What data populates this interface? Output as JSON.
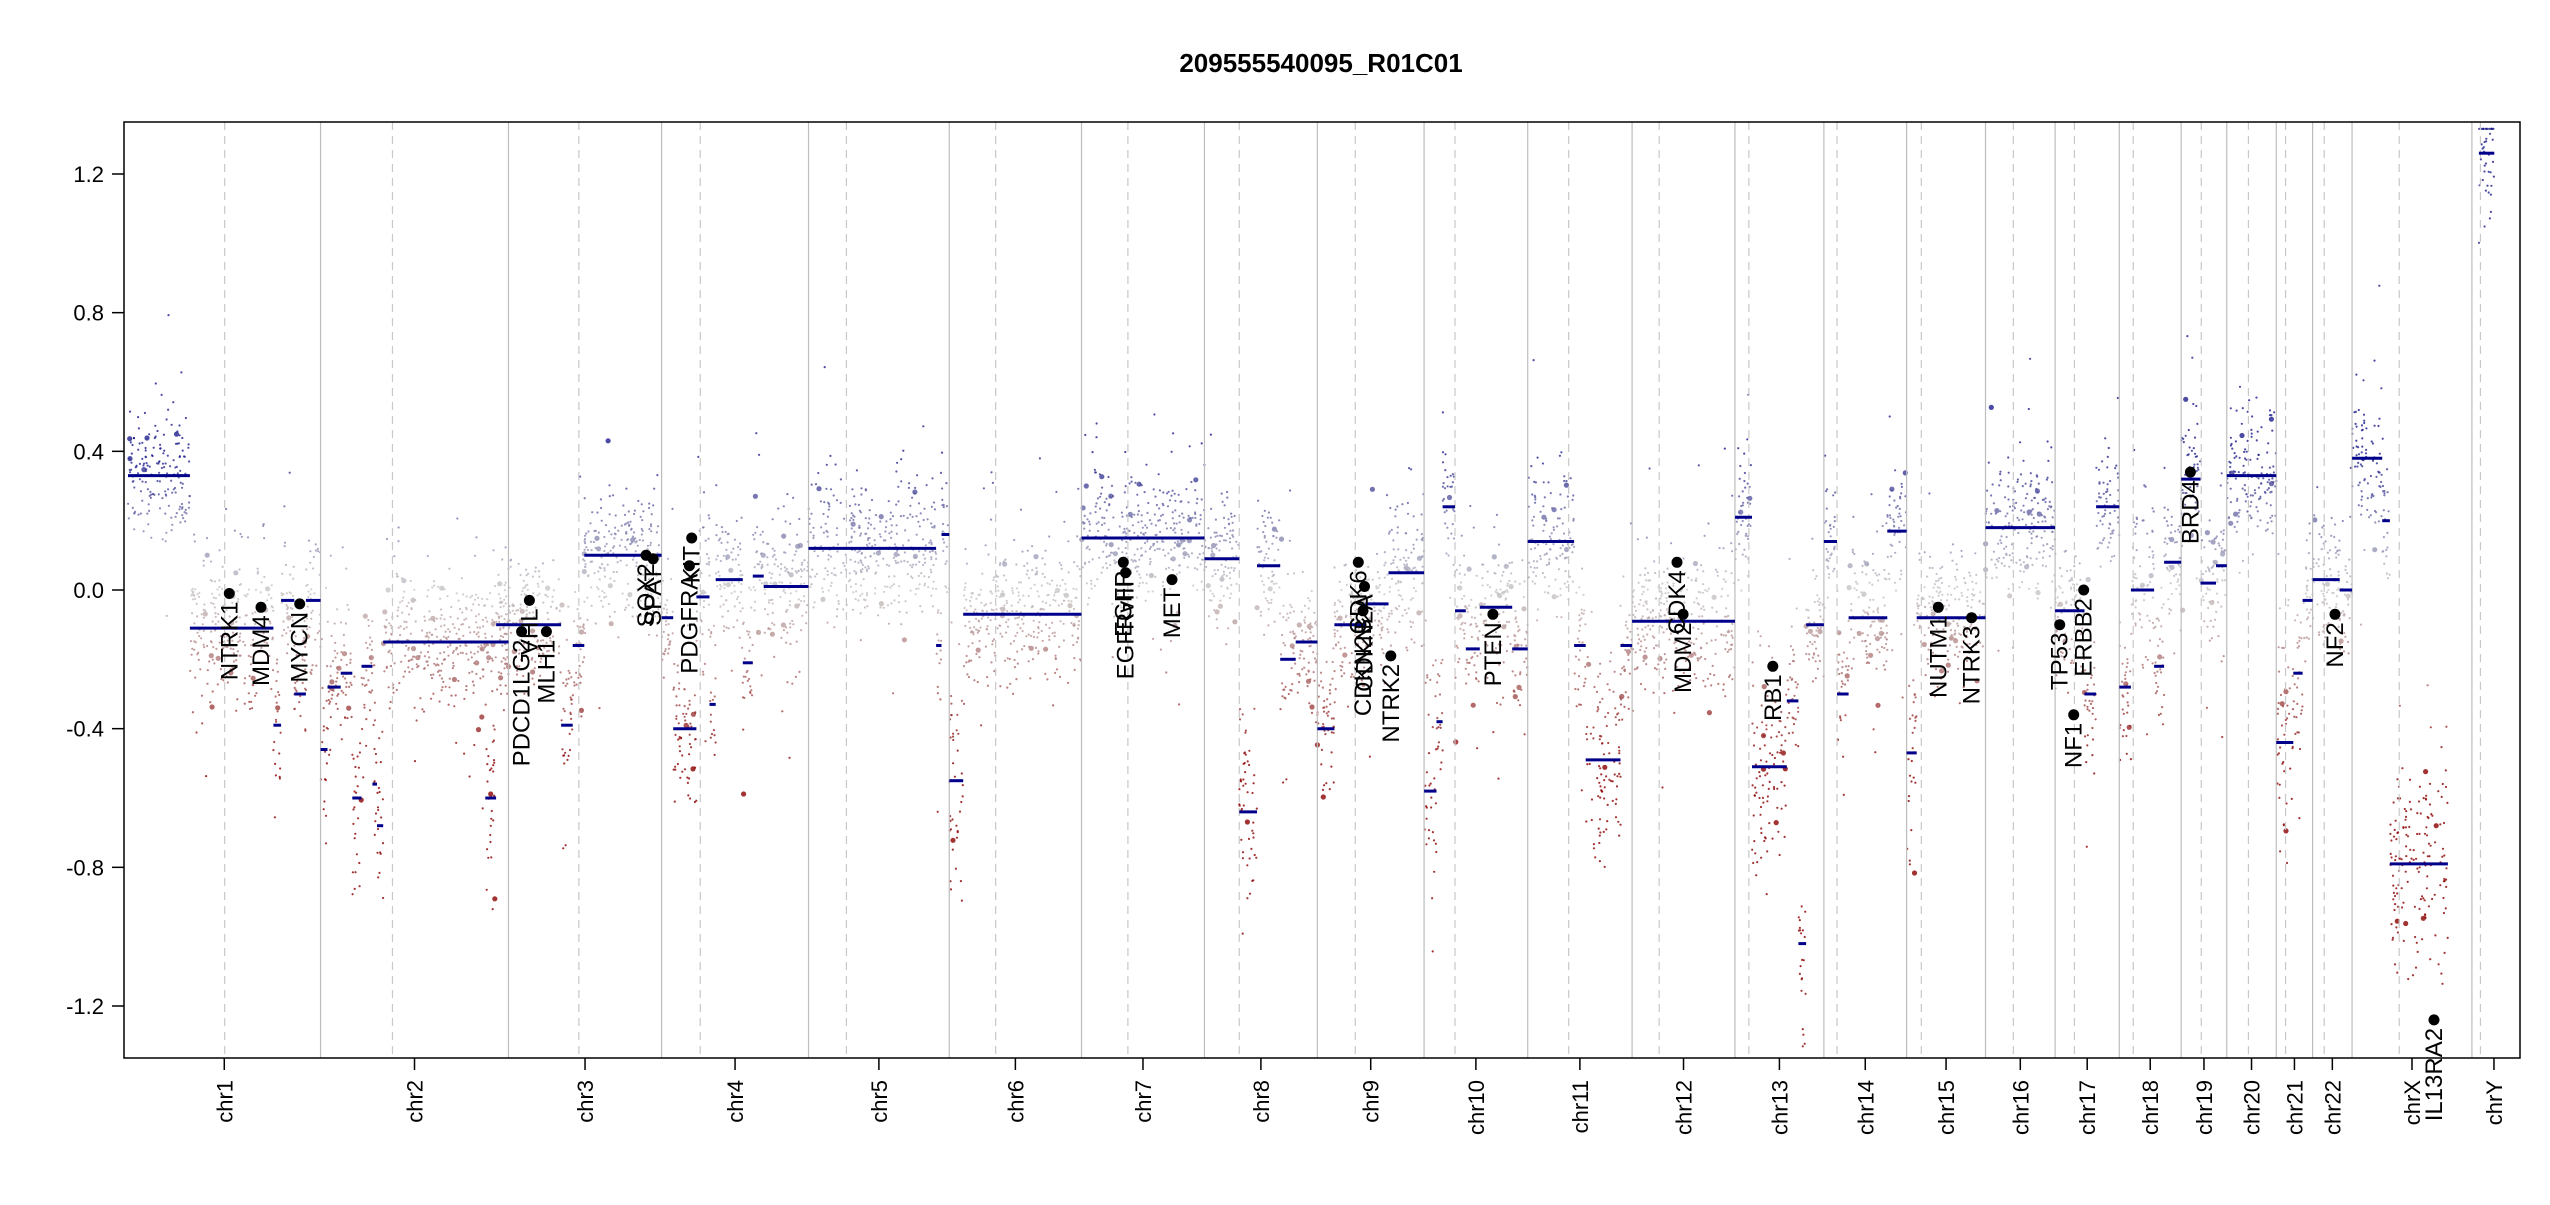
{
  "chart_data": {
    "type": "scatter",
    "title": "209555540095_R01C01",
    "xlabel": "",
    "ylabel": "",
    "ylim": [
      -1.35,
      1.35
    ],
    "yticks": [
      {
        "value": 1.2,
        "label": "1.2"
      },
      {
        "value": 0.8,
        "label": "0.8"
      },
      {
        "value": 0.4,
        "label": "0.4"
      },
      {
        "value": 0.0,
        "label": "0.0"
      },
      {
        "value": -0.4,
        "label": "-0.4"
      },
      {
        "value": -0.8,
        "label": "-0.8"
      },
      {
        "value": -1.2,
        "label": "-1.2"
      }
    ],
    "grid": false,
    "colors": {
      "gain": "#1a1a8c",
      "neutral": "#c8c8c8",
      "loss": "#8b0000",
      "segment": "#00008b",
      "gene_marker": "#000000",
      "chrom_boundary": "#bdbdbd",
      "centromere": "#c8c8c8"
    },
    "chromosomes": [
      {
        "name": "chr1",
        "start": 0.0,
        "end": 249.0,
        "centromere": 125.0
      },
      {
        "name": "chr2",
        "start": 249.0,
        "end": 492.0,
        "centromere": 342.0
      },
      {
        "name": "chr3",
        "start": 492.0,
        "end": 690.0,
        "centromere": 583.0
      },
      {
        "name": "chr4",
        "start": 690.0,
        "end": 880.0,
        "centromere": 740.0
      },
      {
        "name": "chr5",
        "start": 880.0,
        "end": 1062.0,
        "centromere": 929.0
      },
      {
        "name": "chr6",
        "start": 1062.0,
        "end": 1233.0,
        "centromere": 1122.0
      },
      {
        "name": "chr7",
        "start": 1233.0,
        "end": 1392.0,
        "centromere": 1293.0
      },
      {
        "name": "chr8",
        "start": 1392.0,
        "end": 1538.0,
        "centromere": 1437.0
      },
      {
        "name": "chr9",
        "start": 1538.0,
        "end": 1676.0,
        "centromere": 1587.0
      },
      {
        "name": "chr10",
        "start": 1676.0,
        "end": 1810.0,
        "centromere": 1716.0
      },
      {
        "name": "chr11",
        "start": 1810.0,
        "end": 1945.0,
        "centromere": 1863.0
      },
      {
        "name": "chr12",
        "start": 1945.0,
        "end": 2078.0,
        "centromere": 1980.0
      },
      {
        "name": "chr13",
        "start": 2078.0,
        "end": 2193.0,
        "centromere": 2096.0
      },
      {
        "name": "chr14",
        "start": 2193.0,
        "end": 2300.0,
        "centromere": 2210.0
      },
      {
        "name": "chr15",
        "start": 2300.0,
        "end": 2402.0,
        "centromere": 2319.0
      },
      {
        "name": "chr16",
        "start": 2402.0,
        "end": 2492.0,
        "centromere": 2438.0
      },
      {
        "name": "chr17",
        "start": 2492.0,
        "end": 2575.0,
        "centromere": 2517.0
      },
      {
        "name": "chr18",
        "start": 2575.0,
        "end": 2655.0,
        "centromere": 2593.0
      },
      {
        "name": "chr19",
        "start": 2655.0,
        "end": 2714.0,
        "centromere": 2681.0
      },
      {
        "name": "chr20",
        "start": 2714.0,
        "end": 2778.0,
        "centromere": 2742.0
      },
      {
        "name": "chr21",
        "start": 2778.0,
        "end": 2825.0,
        "centromere": 2790.0
      },
      {
        "name": "chr22",
        "start": 2825.0,
        "end": 2876.0,
        "centromere": 2840.0
      },
      {
        "name": "chrX",
        "start": 2876.0,
        "end": 3031.0,
        "centromere": 2937.0
      },
      {
        "name": "chrY",
        "start": 3031.0,
        "end": 3088.0,
        "centromere": 3042.0
      }
    ],
    "xlim": [
      0.0,
      3088.0
    ],
    "segments": [
      {
        "start": 0.0,
        "end": 80.0,
        "value": 0.33
      },
      {
        "start": 80.0,
        "end": 188.0,
        "value": -0.11
      },
      {
        "start": 188.0,
        "end": 198.0,
        "value": -0.39
      },
      {
        "start": 198.0,
        "end": 215.0,
        "value": -0.03
      },
      {
        "start": 215.0,
        "end": 230.0,
        "value": -0.3
      },
      {
        "start": 230.0,
        "end": 249.0,
        "value": -0.03
      },
      {
        "start": 249.0,
        "end": 258.0,
        "value": -0.46
      },
      {
        "start": 258.0,
        "end": 275.0,
        "value": -0.28
      },
      {
        "start": 275.0,
        "end": 290.0,
        "value": -0.24
      },
      {
        "start": 290.0,
        "end": 302.0,
        "value": -0.6
      },
      {
        "start": 302.0,
        "end": 316.0,
        "value": -0.22
      },
      {
        "start": 316.0,
        "end": 322.0,
        "value": -0.56
      },
      {
        "start": 322.0,
        "end": 330.0,
        "value": -0.68
      },
      {
        "start": 330.0,
        "end": 492.0,
        "value": -0.15
      },
      {
        "start": 462.0,
        "end": 476.0,
        "value": -0.6
      },
      {
        "start": 476.0,
        "end": 492.0,
        "value": -0.1
      },
      {
        "start": 492.0,
        "end": 560.0,
        "value": -0.1
      },
      {
        "start": 560.0,
        "end": 575.0,
        "value": -0.39
      },
      {
        "start": 575.0,
        "end": 590.0,
        "value": -0.16
      },
      {
        "start": 590.0,
        "end": 690.0,
        "value": 0.1
      },
      {
        "start": 690.0,
        "end": 705.0,
        "value": -0.08
      },
      {
        "start": 705.0,
        "end": 735.0,
        "value": -0.4
      },
      {
        "start": 735.0,
        "end": 752.0,
        "value": -0.02
      },
      {
        "start": 752.0,
        "end": 760.0,
        "value": -0.33
      },
      {
        "start": 760.0,
        "end": 795.0,
        "value": 0.03
      },
      {
        "start": 795.0,
        "end": 808.0,
        "value": -0.21
      },
      {
        "start": 808.0,
        "end": 822.0,
        "value": 0.04
      },
      {
        "start": 822.0,
        "end": 880.0,
        "value": 0.01
      },
      {
        "start": 880.0,
        "end": 1045.0,
        "value": 0.12
      },
      {
        "start": 1045.0,
        "end": 1052.0,
        "value": -0.16
      },
      {
        "start": 1052.0,
        "end": 1062.0,
        "value": 0.16
      },
      {
        "start": 1062.0,
        "end": 1080.0,
        "value": -0.55
      },
      {
        "start": 1080.0,
        "end": 1233.0,
        "value": -0.07
      },
      {
        "start": 1233.0,
        "end": 1392.0,
        "value": 0.15
      },
      {
        "start": 1392.0,
        "end": 1437.0,
        "value": 0.09
      },
      {
        "start": 1437.0,
        "end": 1460.0,
        "value": -0.64
      },
      {
        "start": 1460.0,
        "end": 1490.0,
        "value": 0.07
      },
      {
        "start": 1490.0,
        "end": 1510.0,
        "value": -0.2
      },
      {
        "start": 1510.0,
        "end": 1538.0,
        "value": -0.15
      },
      {
        "start": 1538.0,
        "end": 1560.0,
        "value": -0.4
      },
      {
        "start": 1560.0,
        "end": 1600.0,
        "value": -0.1
      },
      {
        "start": 1600.0,
        "end": 1630.0,
        "value": -0.04
      },
      {
        "start": 1630.0,
        "end": 1676.0,
        "value": 0.05
      },
      {
        "start": 1676.0,
        "end": 1692.0,
        "value": -0.58
      },
      {
        "start": 1692.0,
        "end": 1700.0,
        "value": -0.38
      },
      {
        "start": 1700.0,
        "end": 1716.0,
        "value": 0.24
      },
      {
        "start": 1716.0,
        "end": 1730.0,
        "value": -0.06
      },
      {
        "start": 1730.0,
        "end": 1748.0,
        "value": -0.17
      },
      {
        "start": 1748.0,
        "end": 1790.0,
        "value": -0.05
      },
      {
        "start": 1790.0,
        "end": 1810.0,
        "value": -0.17
      },
      {
        "start": 1810.0,
        "end": 1870.0,
        "value": 0.14
      },
      {
        "start": 1870.0,
        "end": 1885.0,
        "value": -0.16
      },
      {
        "start": 1885.0,
        "end": 1930.0,
        "value": -0.49
      },
      {
        "start": 1930.0,
        "end": 1945.0,
        "value": -0.16
      },
      {
        "start": 1945.0,
        "end": 2078.0,
        "value": -0.09
      },
      {
        "start": 2078.0,
        "end": 2100.0,
        "value": 0.21
      },
      {
        "start": 2100.0,
        "end": 2145.0,
        "value": -0.51
      },
      {
        "start": 2145.0,
        "end": 2160.0,
        "value": -0.32
      },
      {
        "start": 2160.0,
        "end": 2170.0,
        "value": -1.02
      },
      {
        "start": 2170.0,
        "end": 2193.0,
        "value": -0.1
      },
      {
        "start": 2193.0,
        "end": 2210.0,
        "value": 0.14
      },
      {
        "start": 2210.0,
        "end": 2225.0,
        "value": -0.3
      },
      {
        "start": 2225.0,
        "end": 2275.0,
        "value": -0.08
      },
      {
        "start": 2275.0,
        "end": 2300.0,
        "value": 0.17
      },
      {
        "start": 2300.0,
        "end": 2313.0,
        "value": -0.47
      },
      {
        "start": 2313.0,
        "end": 2402.0,
        "value": -0.08
      },
      {
        "start": 2402.0,
        "end": 2492.0,
        "value": 0.18
      },
      {
        "start": 2492.0,
        "end": 2530.0,
        "value": -0.06
      },
      {
        "start": 2530.0,
        "end": 2545.0,
        "value": -0.3
      },
      {
        "start": 2545.0,
        "end": 2575.0,
        "value": 0.24
      },
      {
        "start": 2575.0,
        "end": 2590.0,
        "value": -0.28
      },
      {
        "start": 2590.0,
        "end": 2620.0,
        "value": 0.0
      },
      {
        "start": 2620.0,
        "end": 2633.0,
        "value": -0.22
      },
      {
        "start": 2633.0,
        "end": 2655.0,
        "value": 0.08
      },
      {
        "start": 2655.0,
        "end": 2680.0,
        "value": 0.32
      },
      {
        "start": 2680.0,
        "end": 2700.0,
        "value": 0.02
      },
      {
        "start": 2700.0,
        "end": 2714.0,
        "value": 0.07
      },
      {
        "start": 2714.0,
        "end": 2740.0,
        "value": 0.33
      },
      {
        "start": 2740.0,
        "end": 2778.0,
        "value": 0.33
      },
      {
        "start": 2778.0,
        "end": 2800.0,
        "value": -0.44
      },
      {
        "start": 2800.0,
        "end": 2812.0,
        "value": -0.24
      },
      {
        "start": 2812.0,
        "end": 2825.0,
        "value": -0.03
      },
      {
        "start": 2825.0,
        "end": 2860.0,
        "value": 0.03
      },
      {
        "start": 2860.0,
        "end": 2876.0,
        "value": 0.0
      },
      {
        "start": 2876.0,
        "end": 2915.0,
        "value": 0.38
      },
      {
        "start": 2915.0,
        "end": 2925.0,
        "value": 0.2
      },
      {
        "start": 2925.0,
        "end": 3000.0,
        "value": -0.79
      },
      {
        "start": 3040.0,
        "end": 3060.0,
        "value": 1.26
      }
    ],
    "genes": [
      {
        "name": "NTRK1",
        "pos": 131.0,
        "value": -0.01
      },
      {
        "name": "MDM4",
        "pos": 172.0,
        "value": -0.05
      },
      {
        "name": "MYCN",
        "pos": 222.0,
        "value": -0.04
      },
      {
        "name": "PDCD1LG2",
        "pos": 509.0,
        "value": -0.12
      },
      {
        "name": "VHL",
        "pos": 519.0,
        "value": -0.03
      },
      {
        "name": "MLH1",
        "pos": 541.0,
        "value": -0.12
      },
      {
        "name": "SOX2",
        "pos": 670.0,
        "value": 0.1
      },
      {
        "name": "SPAT",
        "pos": 679.0,
        "value": 0.09
      },
      {
        "name": "KIT",
        "pos": 729.0,
        "value": 0.15
      },
      {
        "name": "PDGFRA",
        "pos": 726.0,
        "value": 0.07
      },
      {
        "name": "EGFR",
        "pos": 1287.0,
        "value": 0.08
      },
      {
        "name": "EGFRvIII",
        "pos": 1290.0,
        "value": 0.05
      },
      {
        "name": "MET",
        "pos": 1350.0,
        "value": 0.03
      },
      {
        "name": "CDKN2A",
        "pos": 1599.0,
        "value": 0.01
      },
      {
        "name": "CDK6",
        "pos": 1591.0,
        "value": 0.08
      },
      {
        "name": "CDKN2B",
        "pos": 1597.0,
        "value": -0.06
      },
      {
        "name": "NTRK2",
        "pos": 1633.0,
        "value": -0.19
      },
      {
        "name": "PTEN",
        "pos": 1765.0,
        "value": -0.07
      },
      {
        "name": "CDK4",
        "pos": 2003.0,
        "value": 0.08
      },
      {
        "name": "MDM2",
        "pos": 2011.0,
        "value": -0.07
      },
      {
        "name": "RB1",
        "pos": 2127.0,
        "value": -0.22
      },
      {
        "name": "NUTM1",
        "pos": 2341.0,
        "value": -0.05
      },
      {
        "name": "NTRK3",
        "pos": 2384.0,
        "value": -0.08
      },
      {
        "name": "TP53",
        "pos": 2498.0,
        "value": -0.1
      },
      {
        "name": "NF1",
        "pos": 2516.0,
        "value": -0.36
      },
      {
        "name": "ERBB2",
        "pos": 2529.0,
        "value": 0.0
      },
      {
        "name": "BRD4",
        "pos": 2667.0,
        "value": 0.34
      },
      {
        "name": "NF2",
        "pos": 2854.0,
        "value": -0.07
      },
      {
        "name": "IL13RA2",
        "pos": 2982.0,
        "value": -1.24
      }
    ]
  }
}
